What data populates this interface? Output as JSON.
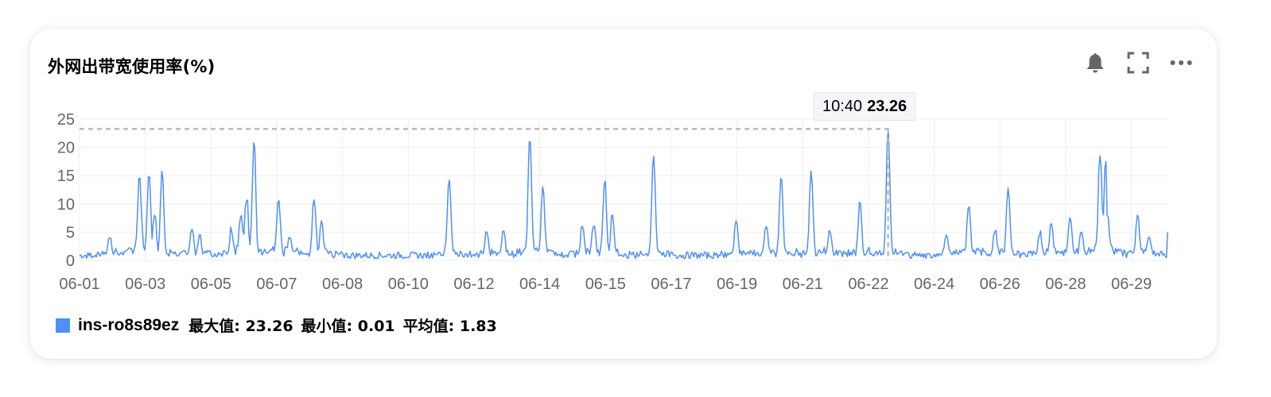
{
  "panel": {
    "title": "外网出带宽使用率(%)",
    "icons": [
      "bell-icon",
      "fullscreen-icon",
      "more-icon"
    ]
  },
  "chart_data": {
    "type": "line",
    "title": "外网出带宽使用率(%)",
    "ylim": [
      0,
      25
    ],
    "yticks": [
      0,
      5,
      10,
      15,
      20,
      25
    ],
    "grid": true,
    "x_tick_labels": [
      "06-01",
      "06-03",
      "06-05",
      "06-07",
      "06-08",
      "06-10",
      "06-12",
      "06-14",
      "06-15",
      "06-17",
      "06-19",
      "06-21",
      "06-22",
      "06-24",
      "06-26",
      "06-28",
      "06-29"
    ],
    "series": [
      {
        "name": "ins-ro8s89ez",
        "color": "#4f8ff7",
        "x_range_days": [
          0,
          29
        ],
        "peaks": [
          {
            "x": 0.8,
            "y": 4.0
          },
          {
            "x": 1.3,
            "y": 2.0
          },
          {
            "x": 1.6,
            "y": 14.5
          },
          {
            "x": 1.85,
            "y": 14.8
          },
          {
            "x": 2.0,
            "y": 8.0
          },
          {
            "x": 2.2,
            "y": 15.8
          },
          {
            "x": 3.0,
            "y": 5.5
          },
          {
            "x": 3.2,
            "y": 4.5
          },
          {
            "x": 4.05,
            "y": 5.0
          },
          {
            "x": 4.3,
            "y": 7.5
          },
          {
            "x": 4.45,
            "y": 10.5
          },
          {
            "x": 4.65,
            "y": 20.8
          },
          {
            "x": 5.3,
            "y": 10.3
          },
          {
            "x": 5.6,
            "y": 4.0
          },
          {
            "x": 6.25,
            "y": 10.7
          },
          {
            "x": 6.45,
            "y": 7.0
          },
          {
            "x": 9.85,
            "y": 14.2
          },
          {
            "x": 10.85,
            "y": 5.0
          },
          {
            "x": 11.3,
            "y": 5.2
          },
          {
            "x": 12.0,
            "y": 21.0
          },
          {
            "x": 12.35,
            "y": 13.0
          },
          {
            "x": 13.4,
            "y": 6.0
          },
          {
            "x": 13.7,
            "y": 6.0
          },
          {
            "x": 14.0,
            "y": 13.5
          },
          {
            "x": 14.2,
            "y": 8.0
          },
          {
            "x": 15.3,
            "y": 18.4
          },
          {
            "x": 17.5,
            "y": 7.0
          },
          {
            "x": 18.3,
            "y": 6.0
          },
          {
            "x": 18.7,
            "y": 14.5
          },
          {
            "x": 19.5,
            "y": 15.8
          },
          {
            "x": 20.0,
            "y": 5.0
          },
          {
            "x": 20.8,
            "y": 10.0
          },
          {
            "x": 21.55,
            "y": 23.26
          },
          {
            "x": 23.1,
            "y": 4.5
          },
          {
            "x": 23.7,
            "y": 9.5
          },
          {
            "x": 24.4,
            "y": 5.0
          },
          {
            "x": 24.75,
            "y": 12.8
          },
          {
            "x": 25.6,
            "y": 4.5
          },
          {
            "x": 25.9,
            "y": 6.5
          },
          {
            "x": 26.4,
            "y": 7.5
          },
          {
            "x": 26.7,
            "y": 5.0
          },
          {
            "x": 27.2,
            "y": 18.5
          },
          {
            "x": 27.35,
            "y": 17.5
          },
          {
            "x": 27.4,
            "y": 8.0
          },
          {
            "x": 28.2,
            "y": 8.0
          },
          {
            "x": 28.5,
            "y": 4.0
          },
          {
            "x": 29.55,
            "y": 5.0
          }
        ],
        "max": 23.26,
        "min": 0.01,
        "avg": 1.83
      }
    ],
    "tooltip": {
      "time": "10:40",
      "value": "23.26"
    },
    "reference_line_value": 23.26
  },
  "legend": {
    "series_name": "ins-ro8s89ez",
    "max_label": "最大值: 23.26",
    "min_label": "最小值: 0.01",
    "avg_label": "平均值: 1.83"
  }
}
